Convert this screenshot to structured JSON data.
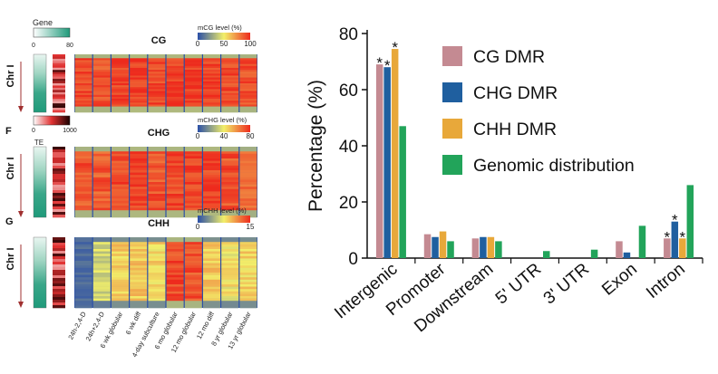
{
  "left_panel": {
    "gene_legend": {
      "title": "Gene",
      "min": "0",
      "max": "80",
      "colors": [
        "#ffffff",
        "#1f9a7a"
      ]
    },
    "te_legend": {
      "title": "TE",
      "min": "0",
      "max": "1000",
      "colors": [
        "#ffffff",
        "#e03030",
        "#1a0000"
      ]
    },
    "panels": [
      {
        "letter": "",
        "chr_label": "Chr I",
        "title": "CG",
        "scale_title": "mCG level (%)",
        "scale_ticks": [
          "0",
          "50",
          "100"
        ]
      },
      {
        "letter": "F",
        "chr_label": "Chr I",
        "title": "CHG",
        "scale_title": "mCHG level (%)",
        "scale_ticks": [
          "0",
          "40",
          "80"
        ]
      },
      {
        "letter": "G",
        "chr_label": "Chr I",
        "title": "CHH",
        "scale_title": "mCHH level (%)",
        "scale_ticks": [
          "0",
          "15"
        ]
      }
    ],
    "heat_colors": [
      "#2a4fa8",
      "#f2ef6a",
      "#ee2a1d"
    ],
    "column_labels": [
      "24h-2,4-D",
      "24h+2,4-D",
      "6 wk globular",
      "6 wk diff",
      "4-day subculture",
      "6 mo globular",
      "12 mo globular",
      "12 mo diff",
      "8 yr globular",
      "13 yr globular"
    ]
  },
  "chart_data": {
    "type": "bar",
    "ylabel": "Percentage (%)",
    "ylim": [
      0,
      80
    ],
    "yticks": [
      0,
      20,
      40,
      60,
      80
    ],
    "categories": [
      "Intergenic",
      "Promoter",
      "Downstream",
      "5' UTR",
      "3' UTR",
      "Exon",
      "Intron"
    ],
    "series": [
      {
        "name": "CG DMR",
        "color": "#c48a92",
        "values": [
          69,
          8.5,
          7,
          0,
          0,
          6,
          7
        ]
      },
      {
        "name": "CHG DMR",
        "color": "#1f5f9f",
        "values": [
          68,
          7.5,
          7.5,
          0,
          0,
          2,
          13
        ]
      },
      {
        "name": "CHH DMR",
        "color": "#e8a83a",
        "values": [
          74.5,
          9.5,
          7.5,
          0,
          0,
          0,
          7
        ]
      },
      {
        "name": "Genomic distribution",
        "color": "#22a45a",
        "values": [
          47,
          6,
          6,
          2.5,
          3,
          11.5,
          26
        ]
      }
    ],
    "significance": [
      {
        "category": "Intergenic",
        "series": "CG DMR",
        "label": "*"
      },
      {
        "category": "Intergenic",
        "series": "CHG DMR",
        "label": "*"
      },
      {
        "category": "Intergenic",
        "series": "CHH DMR",
        "label": "*"
      },
      {
        "category": "Intron",
        "series": "CG DMR",
        "label": "*"
      },
      {
        "category": "Intron",
        "series": "CHG DMR",
        "label": "*"
      },
      {
        "category": "Intron",
        "series": "CHH DMR",
        "label": "*"
      }
    ],
    "legend_position": "top-right",
    "grid": false
  }
}
